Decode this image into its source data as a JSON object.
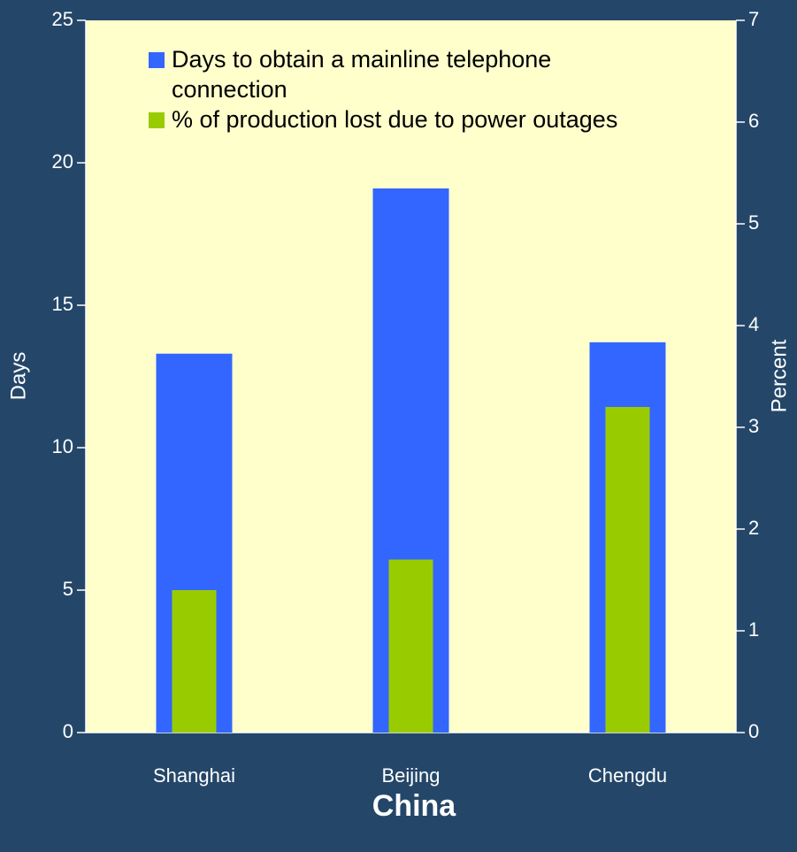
{
  "chart_data": {
    "type": "bar",
    "x_label": "China",
    "y_label": "Days",
    "y2_label": "Percent",
    "categories": [
      "Shanghai",
      "Beijing",
      "Chengdu"
    ],
    "series": [
      {
        "name": "Days to obtain a mainline telephone connection",
        "color": "#3366ff",
        "values": [
          13.3,
          19.1,
          13.7
        ]
      },
      {
        "name": "% of production lost due to power outages",
        "color": "#99cc00",
        "axis": "y2",
        "values": [
          1.4,
          1.7,
          3.2
        ]
      }
    ],
    "ylim": [
      0,
      25
    ],
    "yticks": [
      0,
      5,
      10,
      15,
      20,
      25
    ],
    "y2lim": [
      0,
      7
    ],
    "y2ticks": [
      0,
      1,
      2,
      3,
      4,
      5,
      6,
      7
    ]
  }
}
